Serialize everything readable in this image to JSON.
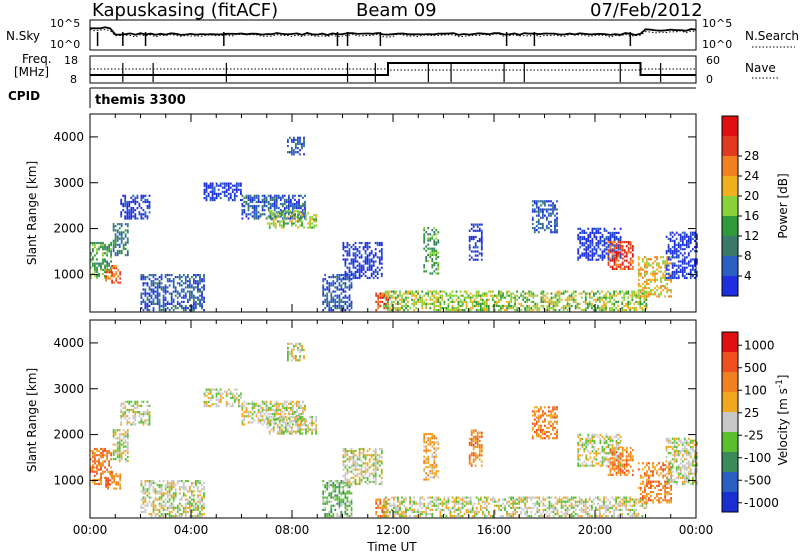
{
  "header": {
    "station": "Kapuskasing (fitACF)",
    "beam": "Beam 09",
    "date": "07/Feb/2012"
  },
  "strip_labels": {
    "nsky": "N.Sky",
    "nsearch": "N.Search",
    "freq": "Freq.",
    "freq_unit": "[MHz]",
    "nave": "Nave",
    "cpid": "CPID",
    "cpid_name": "themis 3300"
  },
  "strip_ticks": {
    "noise_left": [
      "10^5",
      "10^0"
    ],
    "noise_right": [
      "10^5",
      "10^0"
    ],
    "freq_left": [
      "18",
      "8"
    ],
    "nave_right": [
      "60",
      "0"
    ]
  },
  "chart_data": [
    {
      "type": "heatmap",
      "name": "power",
      "ylabel": "Slant Range [km]",
      "xlabel": "",
      "ylim": [
        180,
        4500
      ],
      "yticks": [
        1000,
        2000,
        3000,
        4000
      ],
      "xlim": [
        0,
        24
      ],
      "colorbar": {
        "label": "Power [dB]",
        "ticks": [
          "4",
          "8",
          "12",
          "16",
          "20",
          "24",
          "28"
        ],
        "colors": [
          "#1f2fe0",
          "#2c5fc4",
          "#3a7a6a",
          "#2f9a3a",
          "#8bd23a",
          "#f0b020",
          "#f08020",
          "#e03a20",
          "#e01010"
        ]
      },
      "regions": [
        {
          "t0": 0.0,
          "t1": 0.8,
          "r0": 900,
          "r1": 1700,
          "c": 3
        },
        {
          "t0": 0.6,
          "t1": 1.2,
          "r0": 800,
          "r1": 1200,
          "c": 6
        },
        {
          "t0": 0.9,
          "t1": 1.5,
          "r0": 1400,
          "r1": 2100,
          "c": 2
        },
        {
          "t0": 1.2,
          "t1": 2.4,
          "r0": 2200,
          "r1": 2700,
          "c": 0
        },
        {
          "t0": 2.0,
          "t1": 4.5,
          "r0": 200,
          "r1": 1000,
          "c": 1
        },
        {
          "t0": 4.5,
          "t1": 6.0,
          "r0": 2600,
          "r1": 3000,
          "c": 0
        },
        {
          "t0": 6.0,
          "t1": 8.5,
          "r0": 2200,
          "r1": 2700,
          "c": 1
        },
        {
          "t0": 7.0,
          "t1": 9.0,
          "r0": 2000,
          "r1": 2400,
          "c": 4
        },
        {
          "t0": 7.8,
          "t1": 8.5,
          "r0": 3600,
          "r1": 4000,
          "c": 1
        },
        {
          "t0": 9.2,
          "t1": 10.4,
          "r0": 200,
          "r1": 1000,
          "c": 1
        },
        {
          "t0": 10.0,
          "t1": 11.6,
          "r0": 900,
          "r1": 1700,
          "c": 0
        },
        {
          "t0": 11.3,
          "t1": 11.8,
          "r0": 200,
          "r1": 600,
          "c": 7
        },
        {
          "t0": 11.6,
          "t1": 22.0,
          "r0": 200,
          "r1": 650,
          "c": 4
        },
        {
          "t0": 13.2,
          "t1": 13.8,
          "r0": 1000,
          "r1": 2000,
          "c": 3
        },
        {
          "t0": 15.0,
          "t1": 15.5,
          "r0": 1300,
          "r1": 2100,
          "c": 0
        },
        {
          "t0": 17.5,
          "t1": 18.5,
          "r0": 1900,
          "r1": 2600,
          "c": 1
        },
        {
          "t0": 19.3,
          "t1": 21.0,
          "r0": 1300,
          "r1": 2000,
          "c": 0
        },
        {
          "t0": 20.5,
          "t1": 21.5,
          "r0": 1100,
          "r1": 1700,
          "c": 7
        },
        {
          "t0": 21.7,
          "t1": 23.0,
          "r0": 500,
          "r1": 1400,
          "c": 5
        },
        {
          "t0": 22.8,
          "t1": 24.0,
          "r0": 900,
          "r1": 1900,
          "c": 0
        }
      ]
    },
    {
      "type": "heatmap",
      "name": "velocity",
      "ylabel": "Slant Range [km]",
      "xlabel": "Time UT",
      "ylim": [
        180,
        4500
      ],
      "yticks": [
        1000,
        2000,
        3000,
        4000
      ],
      "xlim": [
        0,
        24
      ],
      "xticks": [
        "00:00",
        "04:00",
        "08:00",
        "12:00",
        "16:00",
        "20:00",
        "00:00"
      ],
      "colorbar": {
        "label": "Velocity [m s^-1]",
        "ticks": [
          "1000",
          "500",
          "100",
          "25",
          "-25",
          "-100",
          "-500",
          "-1000"
        ],
        "colors": [
          "#1a2fd0",
          "#2a60c0",
          "#3a8a5a",
          "#5ac030",
          "#c8c8c8",
          "#f0a820",
          "#f08020",
          "#f05020",
          "#e01010"
        ]
      },
      "regions": [
        {
          "t0": 0.0,
          "t1": 0.8,
          "r0": 900,
          "r1": 1700,
          "c": 6
        },
        {
          "t0": 0.6,
          "t1": 1.2,
          "r0": 800,
          "r1": 1200,
          "c": 6
        },
        {
          "t0": 0.9,
          "t1": 1.5,
          "r0": 1400,
          "r1": 2100,
          "c": 4
        },
        {
          "t0": 1.2,
          "t1": 2.4,
          "r0": 2200,
          "r1": 2700,
          "c": 4
        },
        {
          "t0": 2.0,
          "t1": 4.5,
          "r0": 200,
          "r1": 1000,
          "c": 4
        },
        {
          "t0": 4.5,
          "t1": 6.0,
          "r0": 2600,
          "r1": 3000,
          "c": 4
        },
        {
          "t0": 6.0,
          "t1": 8.5,
          "r0": 2200,
          "r1": 2700,
          "c": 4
        },
        {
          "t0": 7.0,
          "t1": 9.0,
          "r0": 2000,
          "r1": 2400,
          "c": 4
        },
        {
          "t0": 7.8,
          "t1": 8.5,
          "r0": 3600,
          "r1": 4000,
          "c": 4
        },
        {
          "t0": 9.2,
          "t1": 10.4,
          "r0": 200,
          "r1": 1000,
          "c": 3
        },
        {
          "t0": 10.0,
          "t1": 11.6,
          "r0": 900,
          "r1": 1700,
          "c": 4
        },
        {
          "t0": 11.3,
          "t1": 11.8,
          "r0": 200,
          "r1": 600,
          "c": 6
        },
        {
          "t0": 11.6,
          "t1": 22.0,
          "r0": 200,
          "r1": 650,
          "c": 4
        },
        {
          "t0": 13.2,
          "t1": 13.8,
          "r0": 1000,
          "r1": 2000,
          "c": 5
        },
        {
          "t0": 15.0,
          "t1": 15.5,
          "r0": 1300,
          "r1": 2100,
          "c": 6
        },
        {
          "t0": 17.5,
          "t1": 18.5,
          "r0": 1900,
          "r1": 2600,
          "c": 6
        },
        {
          "t0": 19.3,
          "t1": 21.0,
          "r0": 1300,
          "r1": 2000,
          "c": 4
        },
        {
          "t0": 20.5,
          "t1": 21.5,
          "r0": 1100,
          "r1": 1700,
          "c": 6
        },
        {
          "t0": 21.7,
          "t1": 23.0,
          "r0": 500,
          "r1": 1400,
          "c": 6
        },
        {
          "t0": 22.8,
          "t1": 24.0,
          "r0": 900,
          "r1": 1900,
          "c": 4
        }
      ]
    }
  ]
}
